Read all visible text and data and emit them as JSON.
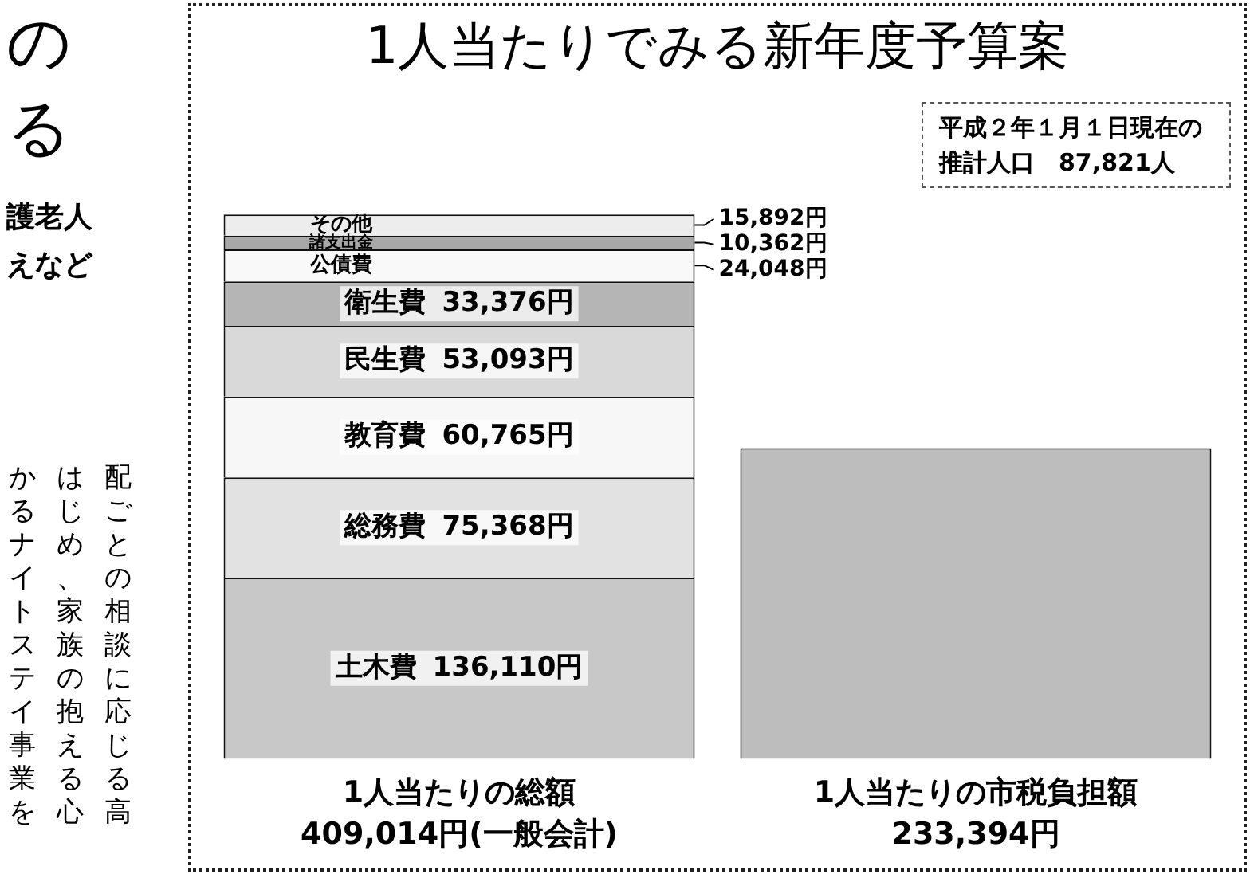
{
  "chart_data": {
    "type": "bar",
    "title": "1人当たりでみる新年度予算案",
    "subtitle": "平成２年１月１日現在の推計人口　87,821人",
    "categories": [
      "1人当たりの総額",
      "1人当たりの市税負担額"
    ],
    "totals": [
      "409,014円(一般会計)",
      "233,394円"
    ],
    "stacked": true,
    "legend": false,
    "grid": false,
    "tick_labels": "x",
    "series": [
      {
        "name": "土木費",
        "color": "#c8c8c8",
        "values": [
          136110,
          null
        ],
        "value_labels": [
          "136,110円",
          null
        ]
      },
      {
        "name": "総務費",
        "color": "#e2e2e2",
        "values": [
          75368,
          null
        ],
        "value_labels": [
          "75,368円",
          null
        ]
      },
      {
        "name": "教育費",
        "color": "#f7f7f7",
        "values": [
          60765,
          null
        ],
        "value_labels": [
          "60,765円",
          null
        ]
      },
      {
        "name": "民生費",
        "color": "#d9d9d9",
        "values": [
          53093,
          null
        ],
        "value_labels": [
          "53,093円",
          null
        ]
      },
      {
        "name": "衛生費",
        "color": "#b5b5b5",
        "values": [
          33376,
          null
        ],
        "value_labels": [
          "33,376円",
          null
        ]
      },
      {
        "name": "公債費",
        "color": "#f9f9f9",
        "values": [
          24048,
          null
        ],
        "value_labels": [
          "24,048円",
          null
        ]
      },
      {
        "name": "諸支出金",
        "color": "#a8a8a8",
        "values": [
          10362,
          null
        ],
        "value_labels": [
          "10,362円",
          null
        ]
      },
      {
        "name": "その他",
        "color": "#ededed",
        "values": [
          15892,
          null
        ],
        "value_labels": [
          "15,892円",
          null
        ]
      },
      {
        "color": "#bdbdbd",
        "values": [
          null,
          233394
        ]
      }
    ],
    "annotations": [
      "の",
      "る",
      "護老人",
      "えなど",
      "配ごとの相談に応じる高",
      "はじめ、家族の抱える心",
      "かるナイトステイ事業を"
    ]
  }
}
